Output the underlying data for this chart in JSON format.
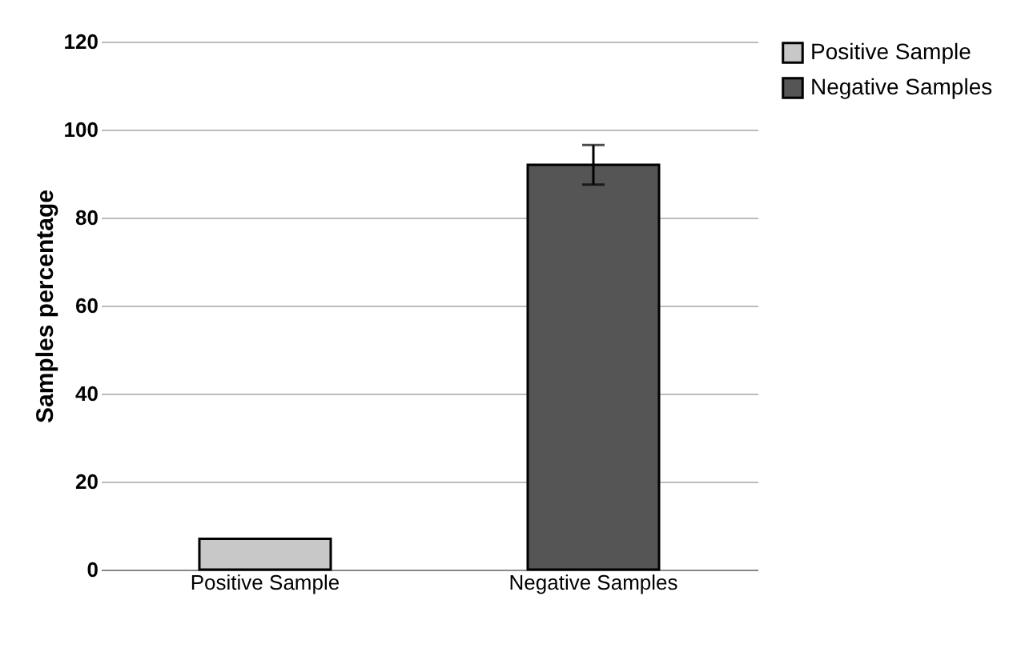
{
  "chart_data": {
    "type": "bar",
    "ylabel": "Samples  percentage",
    "categories": [
      "Positive Sample",
      "Negative Samples"
    ],
    "series": [
      {
        "name": "Positive Sample",
        "color": "#c8c8c8",
        "values": [
          7,
          null
        ],
        "errors": [
          null,
          null
        ]
      },
      {
        "name": "Negative Samples",
        "color": "#555555",
        "values": [
          null,
          92
        ],
        "errors": [
          null,
          4.5
        ]
      }
    ],
    "ylim": [
      0,
      120
    ],
    "yticks": [
      0,
      20,
      40,
      60,
      80,
      100,
      120
    ],
    "grid": "y",
    "legend": "right"
  }
}
